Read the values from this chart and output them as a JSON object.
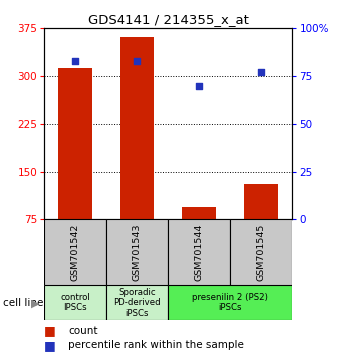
{
  "title": "GDS4141 / 214355_x_at",
  "samples": [
    "GSM701542",
    "GSM701543",
    "GSM701544",
    "GSM701545"
  ],
  "counts": [
    312,
    362,
    95,
    130
  ],
  "percentile_ranks": [
    83,
    83,
    70,
    77
  ],
  "ylim_left": [
    75,
    375
  ],
  "ylim_right": [
    0,
    100
  ],
  "yticks_left": [
    75,
    150,
    225,
    300,
    375
  ],
  "yticks_right": [
    0,
    25,
    50,
    75,
    100
  ],
  "ytick_labels_right": [
    "0",
    "25",
    "50",
    "75",
    "100%"
  ],
  "bar_color": "#cc2200",
  "dot_color": "#2233bb",
  "bg_color": "#ffffff",
  "sample_bg_color": "#c8c8c8",
  "sample_border_color": "#000000",
  "group_data": [
    {
      "label": "control\nIPSCs",
      "color": "#c8f0c8",
      "xstart": 0,
      "xend": 1
    },
    {
      "label": "Sporadic\nPD-derived\niPSCs",
      "color": "#c8f0c8",
      "xstart": 1,
      "xend": 2
    },
    {
      "label": "presenilin 2 (PS2)\niPSCs",
      "color": "#55ee55",
      "xstart": 2,
      "xend": 4
    }
  ],
  "cell_line_label": "cell line",
  "legend_count": "count",
  "legend_percentile": "percentile rank within the sample",
  "bar_width": 0.55
}
